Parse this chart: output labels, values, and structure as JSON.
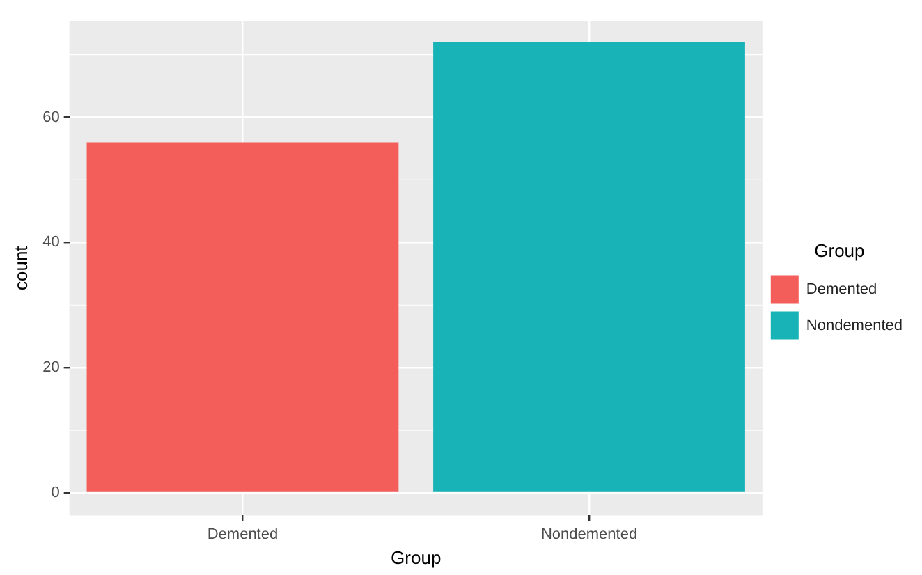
{
  "chart_data": {
    "type": "bar",
    "xlabel": "Group",
    "ylabel": "count",
    "legend_title": "Group",
    "categories": [
      "Demented",
      "Nondemented"
    ],
    "series": [
      {
        "name": "Demented",
        "color": "#f35e5a",
        "values": [
          56,
          null
        ]
      },
      {
        "name": "Nondemented",
        "color": "#17b3b7",
        "values": [
          null,
          72
        ]
      }
    ],
    "ylim": [
      -3.6,
      75.4
    ],
    "yticks": [
      0,
      20,
      40,
      60
    ],
    "grid": true,
    "legend": "right"
  }
}
